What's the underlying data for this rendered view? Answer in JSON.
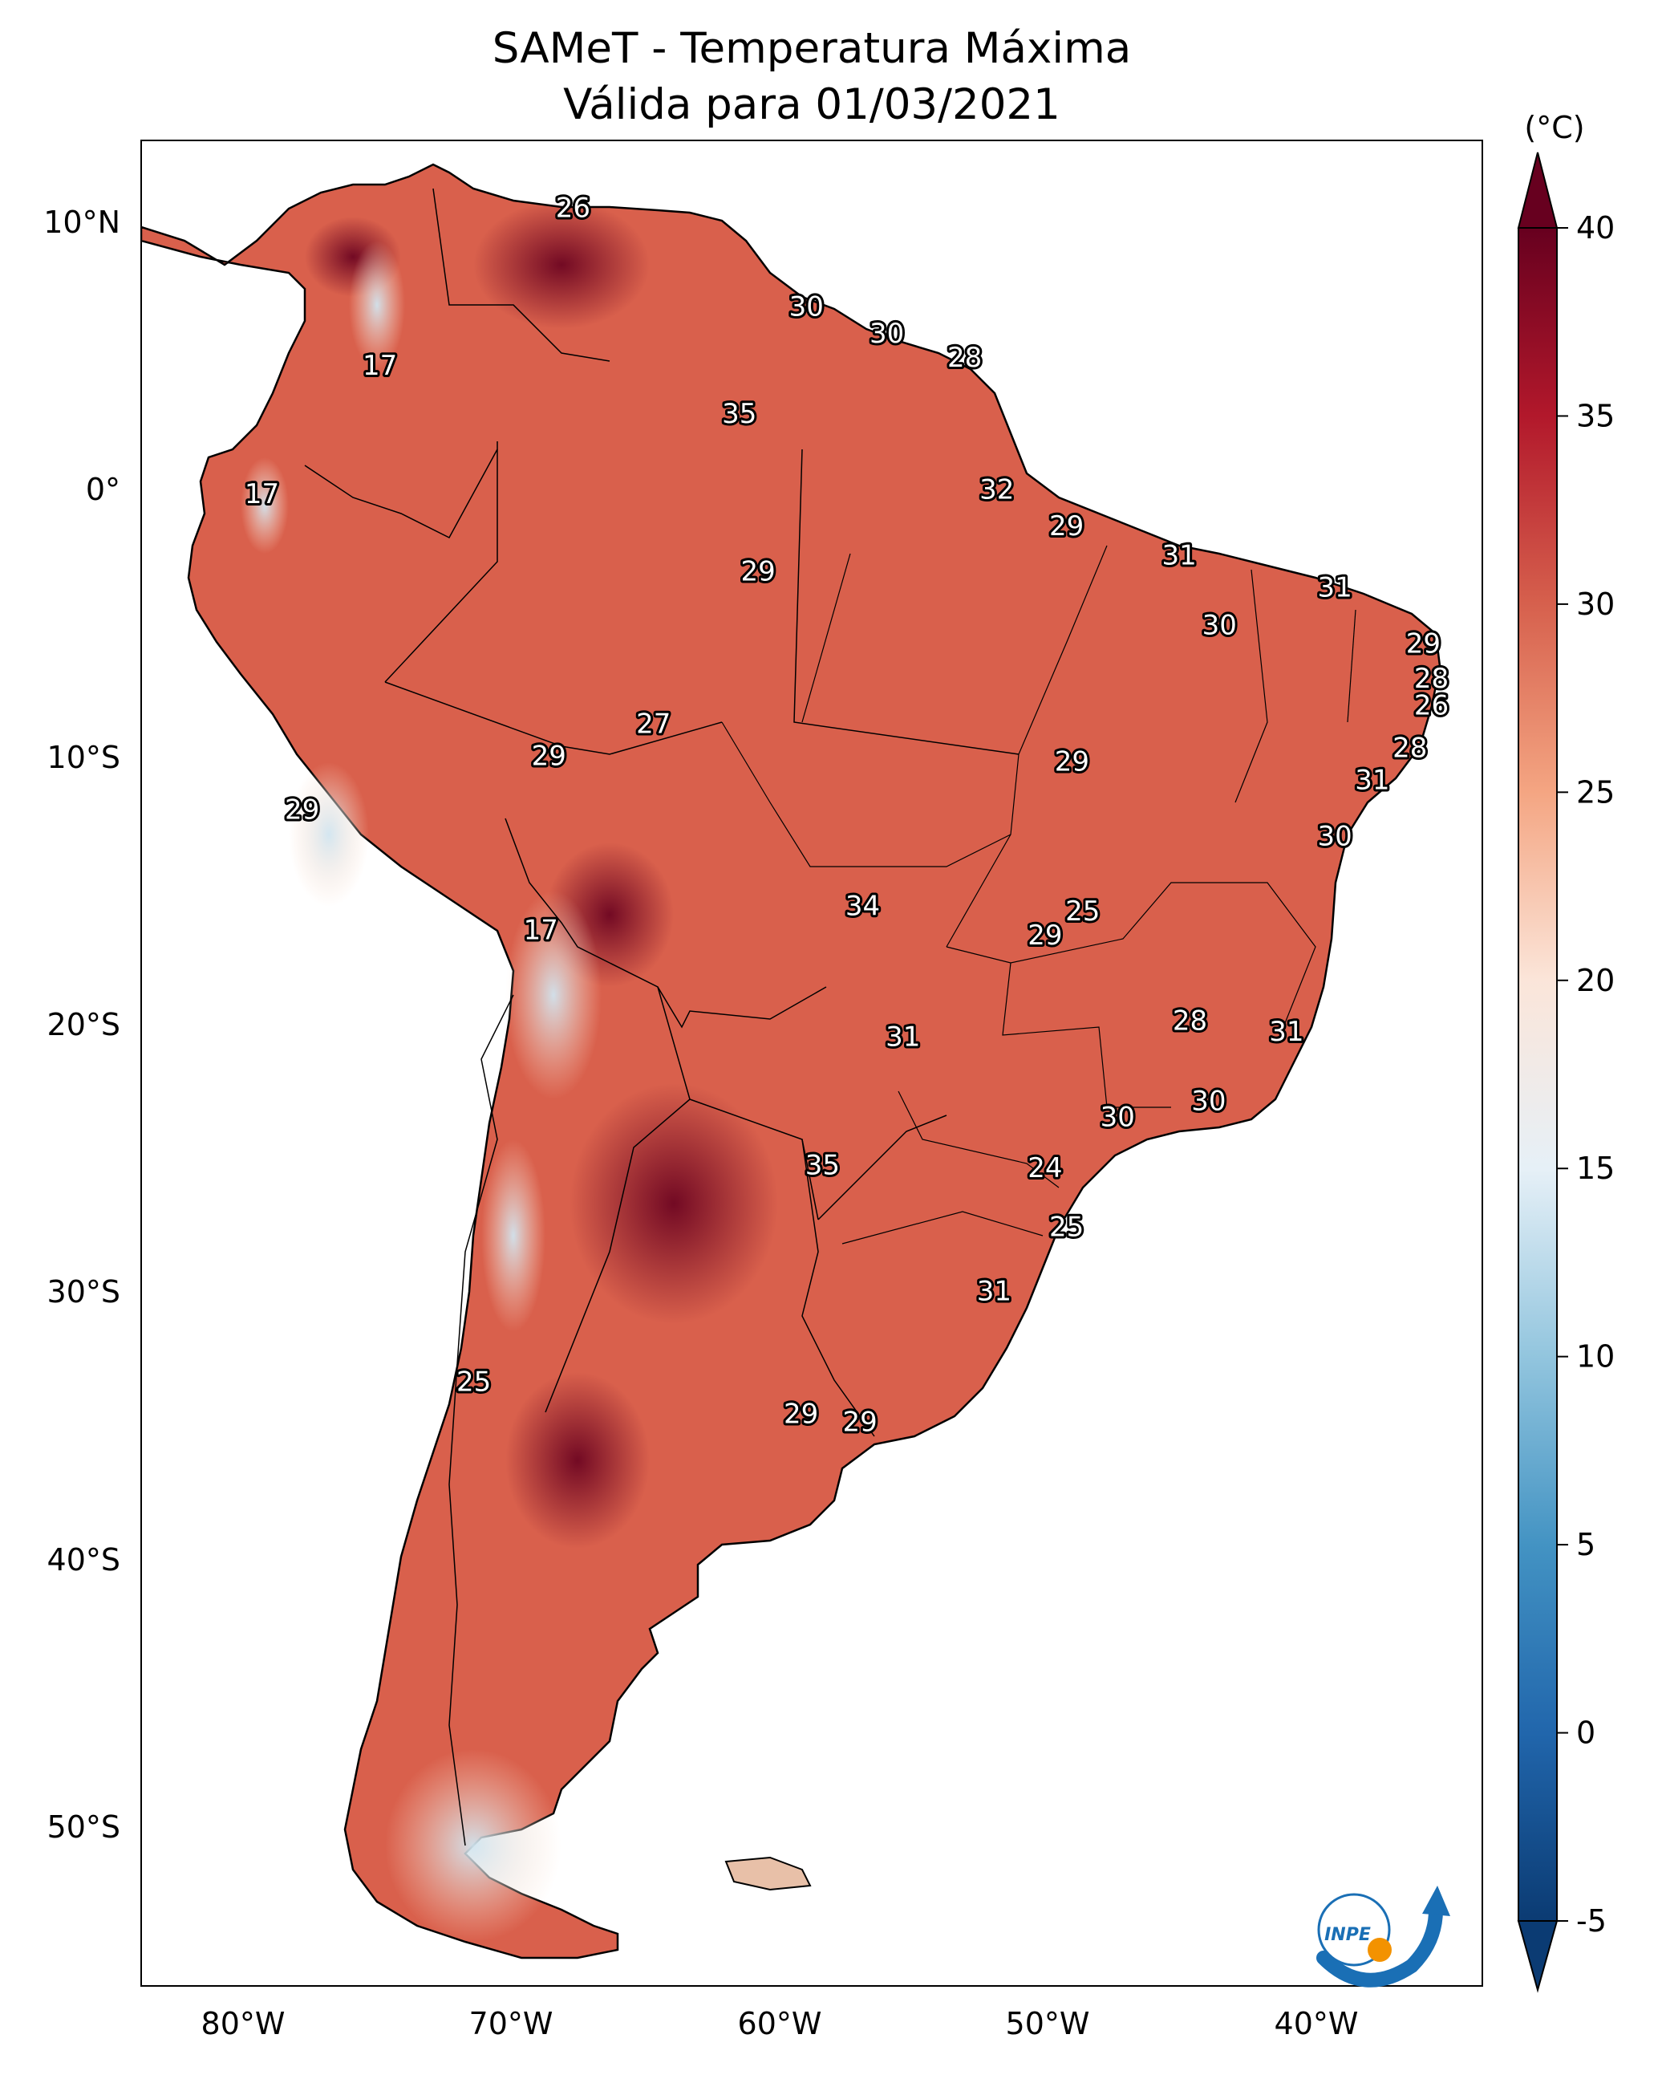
{
  "title": {
    "line1": "SAMeT - Temperatura Máxima",
    "line2": "Válida para 01/03/2021"
  },
  "colorbar": {
    "unit_label": "(°C)",
    "ticks": [
      "-5",
      "0",
      "5",
      "10",
      "15",
      "20",
      "25",
      "30",
      "35",
      "40"
    ],
    "colors": {
      "c_m5": "#0b3b73",
      "c_0": "#2166ac",
      "c_5": "#4393c3",
      "c_10": "#92c5de",
      "c_15": "#e6f0f7",
      "c_20": "#fbe5d9",
      "c_25": "#f4a582",
      "c_30": "#d6604d",
      "c_35": "#b2182b",
      "c_40": "#67001f"
    }
  },
  "axes": {
    "lon_labels": [
      "80°W",
      "70°W",
      "60°W",
      "50°W",
      "40°W"
    ],
    "lat_labels": [
      "10°N",
      "0°",
      "10°S",
      "20°S",
      "30°S",
      "40°S",
      "50°S"
    ],
    "extent": {
      "lon_min": -83,
      "lon_max": -33,
      "lat_min": -56,
      "lat_max": 13
    }
  },
  "chart_data": {
    "type": "map",
    "title": "SAMeT - Temperatura Máxima Válida para 01/03/2021",
    "variable": "Temperatura Máxima",
    "unit": "°C",
    "date": "01/03/2021",
    "colorbar_range": [
      -5,
      40
    ],
    "city_values": [
      {
        "value": "26",
        "lon": -66.9,
        "lat": 10.5
      },
      {
        "value": "17",
        "lon": -74.1,
        "lat": 4.6
      },
      {
        "value": "30",
        "lon": -58.2,
        "lat": 6.8
      },
      {
        "value": "30",
        "lon": -55.2,
        "lat": 5.8
      },
      {
        "value": "28",
        "lon": -52.3,
        "lat": 4.9
      },
      {
        "value": "35",
        "lon": -60.7,
        "lat": 2.8
      },
      {
        "value": "17",
        "lon": -78.5,
        "lat": -0.2
      },
      {
        "value": "32",
        "lon": -51.1,
        "lat": -0.03
      },
      {
        "value": "29",
        "lon": -48.5,
        "lat": -1.4
      },
      {
        "value": "31",
        "lon": -44.3,
        "lat": -2.5
      },
      {
        "value": "29",
        "lon": -60.0,
        "lat": -3.1
      },
      {
        "value": "31",
        "lon": -38.5,
        "lat": -3.7
      },
      {
        "value": "30",
        "lon": -42.8,
        "lat": -5.1
      },
      {
        "value": "29",
        "lon": -35.2,
        "lat": -5.8
      },
      {
        "value": "28",
        "lon": -34.9,
        "lat": -7.1
      },
      {
        "value": "26",
        "lon": -34.9,
        "lat": -8.1
      },
      {
        "value": "27",
        "lon": -63.9,
        "lat": -8.8
      },
      {
        "value": "29",
        "lon": -67.8,
        "lat": -10.0
      },
      {
        "value": "29",
        "lon": -48.3,
        "lat": -10.2
      },
      {
        "value": "28",
        "lon": -35.7,
        "lat": -9.7
      },
      {
        "value": "31",
        "lon": -37.1,
        "lat": -10.9
      },
      {
        "value": "29",
        "lon": -77.0,
        "lat": -12.0
      },
      {
        "value": "30",
        "lon": -38.5,
        "lat": -13.0
      },
      {
        "value": "34",
        "lon": -56.1,
        "lat": -15.6
      },
      {
        "value": "25",
        "lon": -47.9,
        "lat": -15.8
      },
      {
        "value": "29",
        "lon": -49.3,
        "lat": -16.7
      },
      {
        "value": "17",
        "lon": -68.1,
        "lat": -16.5
      },
      {
        "value": "28",
        "lon": -43.9,
        "lat": -19.9
      },
      {
        "value": "31",
        "lon": -54.6,
        "lat": -20.5
      },
      {
        "value": "31",
        "lon": -40.3,
        "lat": -20.3
      },
      {
        "value": "30",
        "lon": -46.6,
        "lat": -23.5
      },
      {
        "value": "30",
        "lon": -43.2,
        "lat": -22.9
      },
      {
        "value": "35",
        "lon": -57.6,
        "lat": -25.3
      },
      {
        "value": "24",
        "lon": -49.3,
        "lat": -25.4
      },
      {
        "value": "25",
        "lon": -48.5,
        "lat": -27.6
      },
      {
        "value": "31",
        "lon": -51.2,
        "lat": -30.0
      },
      {
        "value": "25",
        "lon": -70.6,
        "lat": -33.4
      },
      {
        "value": "29",
        "lon": -58.4,
        "lat": -34.6
      },
      {
        "value": "29",
        "lon": -56.2,
        "lat": -34.9
      }
    ]
  },
  "logo": {
    "text": "INPE"
  }
}
